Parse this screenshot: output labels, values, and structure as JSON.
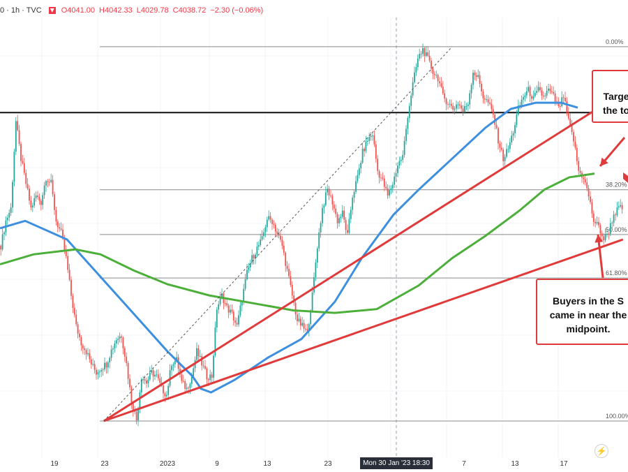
{
  "header": {
    "symbol": "0 · 1h · TVC",
    "open": "O4041.00",
    "high": "H4042.33",
    "low": "L4029.78",
    "close": "C4038.72",
    "change": "−2.30 (−0.06%)"
  },
  "annotations": {
    "target": [
      "Targe",
      "the to"
    ],
    "buyers": [
      "Buyers in the S",
      "came in near the",
      "midpoint."
    ]
  },
  "crosshair_date": "Mon 30 Jan '23   18:30",
  "colors": {
    "up": "#26a69a",
    "down": "#ef5350",
    "ma_blue": "#3d8fe0",
    "ma_green": "#4caf3a",
    "trend_red": "#e03a3a",
    "annotation_border": "#e03a3a"
  },
  "chart_data": {
    "type": "candlestick",
    "x_tick_labels": [
      "19",
      "23",
      "2023",
      "9",
      "13",
      "23",
      "Mon 30 Jan '23  18:30",
      "7",
      "13",
      "17"
    ],
    "fib_levels": [
      {
        "label": "0.00%",
        "price": 4200
      },
      {
        "label": "38.20%",
        "price": 4085
      },
      {
        "label": "50.00%",
        "price": 4049
      },
      {
        "label": "61.80%",
        "price": 4014
      },
      {
        "label": "100.00%",
        "price": 3899
      }
    ],
    "horizontal_resistance": 4147,
    "series": [
      {
        "style": "candles",
        "close_path": [
          [
            0,
            4040
          ],
          [
            3,
            4060
          ],
          [
            6,
            4070
          ],
          [
            9,
            4140
          ],
          [
            12,
            4110
          ],
          [
            15,
            4090
          ],
          [
            18,
            4070
          ],
          [
            21,
            4080
          ],
          [
            24,
            4075
          ],
          [
            27,
            4095
          ],
          [
            30,
            4090
          ],
          [
            33,
            4060
          ],
          [
            36,
            4050
          ],
          [
            39,
            4030
          ],
          [
            42,
            4000
          ],
          [
            45,
            3975
          ],
          [
            48,
            3962
          ],
          [
            51,
            3955
          ],
          [
            54,
            3945
          ],
          [
            57,
            3938
          ],
          [
            60,
            3942
          ],
          [
            63,
            3945
          ],
          [
            66,
            3956
          ],
          [
            69,
            3965
          ],
          [
            72,
            3968
          ],
          [
            75,
            3945
          ],
          [
            78,
            3915
          ],
          [
            81,
            3900
          ],
          [
            84,
            3935
          ],
          [
            87,
            3930
          ],
          [
            90,
            3938
          ],
          [
            93,
            3935
          ],
          [
            96,
            3925
          ],
          [
            99,
            3920
          ],
          [
            102,
            3946
          ],
          [
            105,
            3948
          ],
          [
            108,
            3930
          ],
          [
            111,
            3925
          ],
          [
            114,
            3935
          ],
          [
            117,
            3955
          ],
          [
            120,
            3945
          ],
          [
            123,
            3935
          ],
          [
            126,
            3935
          ],
          [
            129,
            3990
          ],
          [
            132,
            4000
          ],
          [
            135,
            3990
          ],
          [
            138,
            3985
          ],
          [
            141,
            3975
          ],
          [
            144,
            3997
          ],
          [
            147,
            4018
          ],
          [
            150,
            4030
          ],
          [
            153,
            4038
          ],
          [
            156,
            4045
          ],
          [
            159,
            4062
          ],
          [
            162,
            4060
          ],
          [
            165,
            4050
          ],
          [
            168,
            4040
          ],
          [
            171,
            4020
          ],
          [
            174,
            4000
          ],
          [
            177,
            3980
          ],
          [
            180,
            3975
          ],
          [
            183,
            3970
          ],
          [
            186,
            4000
          ],
          [
            189,
            4040
          ],
          [
            192,
            4070
          ],
          [
            195,
            4085
          ],
          [
            198,
            4075
          ],
          [
            201,
            4060
          ],
          [
            204,
            4066
          ],
          [
            207,
            4048
          ],
          [
            210,
            4080
          ],
          [
            213,
            4095
          ],
          [
            216,
            4115
          ],
          [
            219,
            4125
          ],
          [
            222,
            4130
          ],
          [
            225,
            4100
          ],
          [
            228,
            4092
          ],
          [
            231,
            4080
          ],
          [
            234,
            4090
          ],
          [
            237,
            4105
          ],
          [
            240,
            4112
          ],
          [
            243,
            4145
          ],
          [
            246,
            4170
          ],
          [
            249,
            4190
          ],
          [
            252,
            4198
          ],
          [
            255,
            4190
          ],
          [
            258,
            4180
          ],
          [
            261,
            4175
          ],
          [
            264,
            4160
          ],
          [
            267,
            4155
          ],
          [
            270,
            4150
          ],
          [
            273,
            4155
          ],
          [
            276,
            4148
          ],
          [
            279,
            4155
          ],
          [
            282,
            4180
          ],
          [
            285,
            4175
          ],
          [
            288,
            4160
          ],
          [
            291,
            4155
          ],
          [
            294,
            4145
          ],
          [
            297,
            4125
          ],
          [
            300,
            4110
          ],
          [
            303,
            4118
          ],
          [
            306,
            4132
          ],
          [
            309,
            4150
          ],
          [
            312,
            4160
          ],
          [
            315,
            4165
          ],
          [
            318,
            4158
          ],
          [
            321,
            4165
          ],
          [
            324,
            4160
          ],
          [
            327,
            4165
          ],
          [
            330,
            4160
          ],
          [
            333,
            4150
          ],
          [
            336,
            4160
          ],
          [
            339,
            4140
          ],
          [
            342,
            4125
          ],
          [
            345,
            4100
          ],
          [
            348,
            4095
          ],
          [
            351,
            4080
          ],
          [
            354,
            4060
          ],
          [
            357,
            4055
          ],
          [
            360,
            4045
          ],
          [
            363,
            4052
          ],
          [
            366,
            4065
          ],
          [
            369,
            4070
          ],
          [
            372,
            4070
          ]
        ]
      },
      {
        "style": "ma_blue",
        "name": "",
        "path": [
          [
            0,
            4054
          ],
          [
            15,
            4060
          ],
          [
            40,
            4045
          ],
          [
            60,
            4015
          ],
          [
            80,
            3985
          ],
          [
            100,
            3955
          ],
          [
            115,
            3935
          ],
          [
            120,
            3925
          ],
          [
            126,
            3922
          ],
          [
            140,
            3932
          ],
          [
            160,
            3950
          ],
          [
            180,
            3965
          ],
          [
            200,
            3995
          ],
          [
            216,
            4030
          ],
          [
            235,
            4065
          ],
          [
            250,
            4085
          ],
          [
            270,
            4110
          ],
          [
            290,
            4135
          ],
          [
            305,
            4150
          ],
          [
            320,
            4155
          ],
          [
            335,
            4155
          ],
          [
            345,
            4151
          ]
        ]
      },
      {
        "style": "ma_green",
        "name": "",
        "path": [
          [
            0,
            4025
          ],
          [
            20,
            4033
          ],
          [
            45,
            4037
          ],
          [
            60,
            4033
          ],
          [
            80,
            4020
          ],
          [
            100,
            4009
          ],
          [
            125,
            4000
          ],
          [
            150,
            3994
          ],
          [
            175,
            3988
          ],
          [
            200,
            3986
          ],
          [
            225,
            3989
          ],
          [
            250,
            4008
          ],
          [
            270,
            4030
          ],
          [
            290,
            4048
          ],
          [
            310,
            4068
          ],
          [
            325,
            4085
          ],
          [
            340,
            4095
          ],
          [
            355,
            4098
          ]
        ]
      },
      {
        "style": "trendline_red",
        "path": [
          [
            62,
            3899
          ],
          [
            360,
            4153
          ]
        ]
      },
      {
        "style": "trendline_red",
        "path": [
          [
            62,
            3899
          ],
          [
            372,
            4045
          ]
        ]
      },
      {
        "style": "dashed_fib_diagonal",
        "path": [
          [
            62,
            3899
          ],
          [
            270,
            4200
          ]
        ]
      }
    ]
  }
}
